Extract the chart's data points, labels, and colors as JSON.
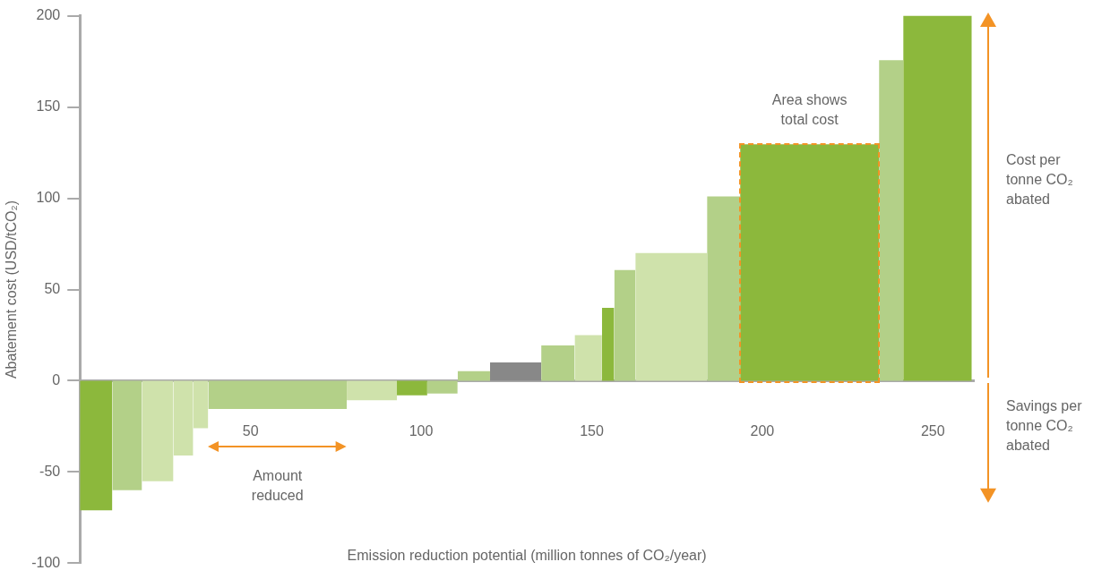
{
  "chart_data": {
    "type": "histogram",
    "xlabel": "Emission reduction potential (million tonnes of CO₂/year)",
    "ylabel": "Abatement cost (USD/tCO₂)",
    "bins": [
      0,
      9.5,
      18.2,
      27.4,
      33.2,
      37.6,
      78.2,
      92.9,
      101.8,
      110.7,
      120.2,
      135.2,
      145,
      153,
      156.6,
      162.8,
      183.8,
      193.5,
      234.2,
      241.3,
      261.4
    ],
    "values": [
      -71,
      -60,
      -55,
      -41,
      -26,
      -15.5,
      -10.7,
      -8,
      -7,
      5.3,
      10,
      19.4,
      25,
      40,
      60.7,
      70,
      101,
      129.6,
      175.7,
      200
    ],
    "colors": [
      "#8cb83c",
      "#b3d088",
      "#cfe2ab",
      "#cfe2ab",
      "#cfe2ab",
      "#b3d088",
      "#cfe2ab",
      "#8cb83c",
      "#b3d088",
      "#b3d088",
      "#888888",
      "#b3d088",
      "#cfe2ab",
      "#8cb83c",
      "#b3d088",
      "#cfe2ab",
      "#b3d088",
      "#8cb83c",
      "#b3d088",
      "#8cb83c"
    ],
    "xlim": [
      0,
      262
    ],
    "xticks": [
      50,
      100,
      150,
      200,
      250
    ],
    "ylim": [
      -100,
      200
    ],
    "yticks": [
      -100,
      -50,
      0,
      50,
      100,
      150,
      200
    ],
    "annotations": [
      "Area shows total cost",
      "Amount reduced",
      "Cost per tonne CO₂ abated",
      "Savings per tonne CO₂ abated"
    ]
  }
}
